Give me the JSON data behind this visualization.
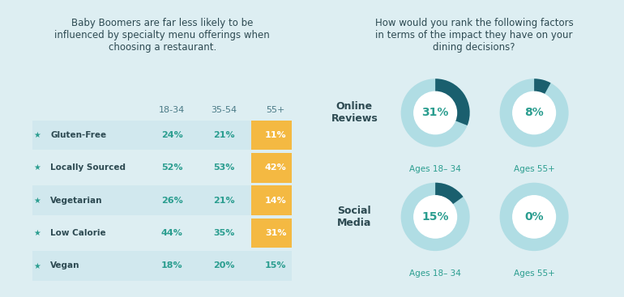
{
  "bg_color": "#ddeef2",
  "teal_color": "#2a9d8f",
  "dark_teal": "#1a5f6e",
  "gold_color": "#f4b942",
  "white_color": "#ffffff",
  "light_teal_ring": "#b0dde4",
  "left_title": "Baby Boomers are far less likely to be\ninfluenced by specialty menu offerings when\nchoosing a restaurant.",
  "right_title": "How would you rank the following factors\nin terms of the impact they have on your\ndining decisions?",
  "col_headers": [
    "18-34",
    "35-54",
    "55+"
  ],
  "row_labels": [
    "Gluten-Free",
    "Locally Sourced",
    "Vegetarian",
    "Low Calorie",
    "Vegan"
  ],
  "data_1834": [
    24,
    52,
    26,
    44,
    18
  ],
  "data_3554": [
    21,
    53,
    21,
    35,
    20
  ],
  "data_55plus": [
    11,
    42,
    14,
    31,
    15
  ],
  "highlight_rows": [
    0,
    1,
    2,
    3
  ],
  "donut_data": {
    "online_1834": 31,
    "online_55plus": 8,
    "social_1834": 15,
    "social_55plus": 0
  },
  "category_labels": [
    "Online\nReviews",
    "Social\nMedia"
  ],
  "age_labels": [
    "Ages 18– 34",
    "Ages 55+"
  ]
}
